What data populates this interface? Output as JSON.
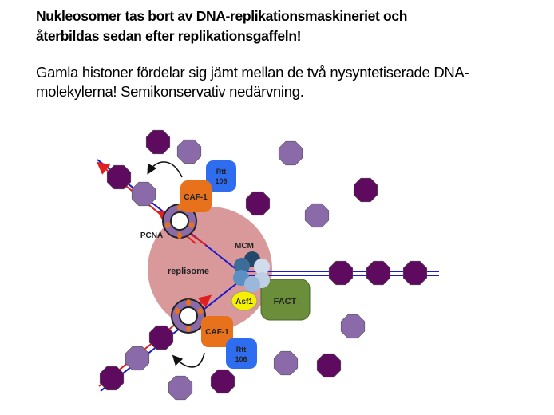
{
  "title": {
    "line1": "Nukleosomer tas bort av DNA-replikationsmaskineriet och",
    "line2": "återbildas sedan efter replikationsgaffeln!"
  },
  "body": {
    "line1": "Gamla histoner fördelar sig jämt mellan de två nysyntetiserade DNA-",
    "line2": "molekylerna! Semikonservativ nedärvning."
  },
  "diagram": {
    "labels": {
      "replisome": "replisome",
      "mcm": "MCM",
      "pcna": "PCNA",
      "caf1_top": "CAF-1",
      "caf1_bottom": "CAF-1",
      "rtt_top_1": "Rtt",
      "rtt_top_2": "106",
      "rtt_bottom_1": "Rtt",
      "rtt_bottom_2": "106",
      "asf1": "Asf1",
      "fact": "FACT"
    },
    "colors": {
      "old_histone": "#5e0a5e",
      "new_histone": "#8a6aa8",
      "replisome": "#d9999a",
      "caf1": "#e8721c",
      "rtt106": "#2f6df0",
      "asf1": "#f5f000",
      "fact": "#6b8e3a",
      "dna_parent": "#1a1acc",
      "dna_new": "#e02020"
    }
  }
}
